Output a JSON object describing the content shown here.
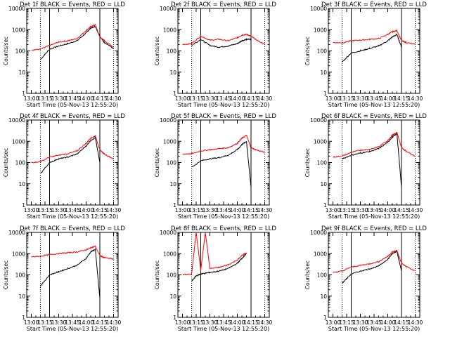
{
  "chart_data": [
    {
      "type": "line",
      "title": "Det 1f BLACK = Events, RED = LLD",
      "xlabel": "Start Time (05-Nov-13 12:55:20)",
      "ylabel": "Counts/sec",
      "x_ticks": [
        "13:00",
        "13:15",
        "13:30",
        "13:45",
        "14:00",
        "14:15",
        "14:30"
      ],
      "y_ticks": [
        "1",
        "10",
        "100",
        "1000",
        "10000"
      ],
      "ylim": [
        1,
        10000
      ],
      "y_scale": "log",
      "x": [
        "13:00",
        "13:10",
        "13:20",
        "13:30",
        "13:40",
        "13:50",
        "14:00",
        "14:05",
        "14:10",
        "14:15",
        "14:20",
        "14:30"
      ],
      "series": [
        {
          "name": "Events",
          "color": "#000000",
          "values": [
            null,
            40,
            120,
            170,
            220,
            300,
            700,
            1200,
            1400,
            500,
            250,
            130
          ]
        },
        {
          "name": "LLD",
          "color": "#ff0000",
          "values": [
            110,
            120,
            180,
            260,
            300,
            380,
            900,
            1400,
            1700,
            450,
            300,
            150
          ]
        }
      ]
    },
    {
      "type": "line",
      "title": "Det 2f BLACK = Events, RED = LLD",
      "xlabel": "Start Time (05-Nov-13 12:55:20)",
      "ylabel": "Counts/sec",
      "x_ticks": [
        "13:00",
        "13:15",
        "13:30",
        "13:45",
        "14:00",
        "14:15",
        "14:30"
      ],
      "y_ticks": [
        "1",
        "10",
        "100",
        "1000",
        "10000"
      ],
      "ylim": [
        1,
        10000
      ],
      "y_scale": "log",
      "x": [
        "13:00",
        "13:10",
        "13:20",
        "13:30",
        "13:40",
        "13:50",
        "14:00",
        "14:05",
        "14:10",
        "14:15",
        "14:20",
        "14:30"
      ],
      "series": [
        {
          "name": "Events",
          "color": "#000000",
          "values": [
            null,
            180,
            350,
            180,
            150,
            170,
            220,
            300,
            350,
            350,
            null,
            null
          ]
        },
        {
          "name": "LLD",
          "color": "#ff0000",
          "values": [
            200,
            220,
            500,
            320,
            350,
            300,
            420,
            550,
            600,
            500,
            350,
            200
          ]
        }
      ]
    },
    {
      "type": "line",
      "title": "Det 3f BLACK = Events, RED = LLD",
      "xlabel": "Start Time (05-Nov-13 12:55:20)",
      "ylabel": "Counts/sec",
      "x_ticks": [
        "13:00",
        "13:15",
        "13:30",
        "13:45",
        "14:00",
        "14:15",
        "14:30"
      ],
      "y_ticks": [
        "1",
        "10",
        "100",
        "1000",
        "10000"
      ],
      "ylim": [
        1,
        10000
      ],
      "y_scale": "log",
      "x": [
        "13:00",
        "13:10",
        "13:20",
        "13:30",
        "13:40",
        "13:50",
        "14:00",
        "14:05",
        "14:10",
        "14:15",
        "14:20",
        "14:30"
      ],
      "series": [
        {
          "name": "Events",
          "color": "#000000",
          "values": [
            null,
            30,
            80,
            100,
            130,
            170,
            300,
            450,
            600,
            150,
            null,
            null
          ]
        },
        {
          "name": "LLD",
          "color": "#ff0000",
          "values": [
            250,
            240,
            300,
            320,
            350,
            380,
            600,
            800,
            900,
            300,
            250,
            200
          ]
        }
      ]
    },
    {
      "type": "line",
      "title": "Det 4f BLACK = Events, RED = LLD",
      "xlabel": "Start Time (05-Nov-13 12:55:20)",
      "ylabel": "Counts/sec",
      "x_ticks": [
        "13:00",
        "13:15",
        "13:30",
        "13:45",
        "14:00",
        "14:15",
        "14:30"
      ],
      "y_ticks": [
        "1",
        "10",
        "100",
        "1000",
        "10000"
      ],
      "ylim": [
        1,
        10000
      ],
      "y_scale": "log",
      "x": [
        "13:00",
        "13:10",
        "13:20",
        "13:30",
        "13:40",
        "13:50",
        "14:00",
        "14:05",
        "14:10",
        "14:15",
        "14:20",
        "14:30"
      ],
      "series": [
        {
          "name": "Events",
          "color": "#000000",
          "values": [
            null,
            30,
            100,
            150,
            180,
            250,
            600,
            1100,
            1500,
            100,
            null,
            null
          ]
        },
        {
          "name": "LLD",
          "color": "#ff0000",
          "values": [
            100,
            110,
            180,
            220,
            260,
            350,
            800,
            1400,
            1800,
            400,
            250,
            150
          ]
        }
      ]
    },
    {
      "type": "line",
      "title": "Det 5f BLACK = Events, RED = LLD",
      "xlabel": "Start Time (05-Nov-13 12:55:20)",
      "ylabel": "Counts/sec",
      "x_ticks": [
        "13:00",
        "13:15",
        "13:30",
        "13:45",
        "14:00",
        "14:15",
        "14:30"
      ],
      "y_ticks": [
        "1",
        "10",
        "100",
        "1000",
        "10000"
      ],
      "ylim": [
        1,
        10000
      ],
      "y_scale": "log",
      "x": [
        "13:00",
        "13:10",
        "13:20",
        "13:30",
        "13:40",
        "13:50",
        "14:00",
        "14:05",
        "14:10",
        "14:15",
        "14:20",
        "14:30"
      ],
      "series": [
        {
          "name": "Events",
          "color": "#000000",
          "values": [
            null,
            60,
            120,
            150,
            170,
            220,
            400,
            700,
            1000,
            7,
            null,
            null
          ]
        },
        {
          "name": "LLD",
          "color": "#ff0000",
          "values": [
            250,
            260,
            350,
            400,
            450,
            500,
            800,
            1400,
            1900,
            500,
            400,
            300
          ]
        }
      ]
    },
    {
      "type": "line",
      "title": "Det 6f BLACK = Events, RED = LLD",
      "xlabel": "Start Time (05-Nov-13 12:55:20)",
      "ylabel": "Counts/sec",
      "x_ticks": [
        "13:00",
        "13:15",
        "13:30",
        "13:45",
        "14:00",
        "14:15",
        "14:30"
      ],
      "y_ticks": [
        "1",
        "10",
        "100",
        "1000",
        "10000"
      ],
      "ylim": [
        1,
        10000
      ],
      "y_scale": "log",
      "x": [
        "13:00",
        "13:10",
        "13:20",
        "13:30",
        "13:40",
        "13:50",
        "14:00",
        "14:05",
        "14:10",
        "14:15",
        "14:20",
        "14:30"
      ],
      "series": [
        {
          "name": "Events",
          "color": "#000000",
          "values": [
            null,
            150,
            220,
            280,
            330,
            450,
            900,
            1600,
            2300,
            7,
            null,
            null
          ]
        },
        {
          "name": "LLD",
          "color": "#ff0000",
          "values": [
            180,
            200,
            300,
            380,
            420,
            550,
            1100,
            2000,
            2600,
            500,
            350,
            200
          ]
        }
      ]
    },
    {
      "type": "line",
      "title": "Det 7f BLACK = Events, RED = LLD",
      "xlabel": "Start Time (05-Nov-13 12:55:20)",
      "ylabel": "Counts/sec",
      "x_ticks": [
        "13:00",
        "13:15",
        "13:30",
        "13:45",
        "14:00",
        "14:15",
        "14:30"
      ],
      "y_ticks": [
        "1",
        "10",
        "100",
        "1000",
        "10000"
      ],
      "ylim": [
        1,
        10000
      ],
      "y_scale": "log",
      "x": [
        "13:00",
        "13:10",
        "13:20",
        "13:30",
        "13:40",
        "13:50",
        "14:00",
        "14:05",
        "14:10",
        "14:15",
        "14:20",
        "14:30"
      ],
      "series": [
        {
          "name": "Events",
          "color": "#000000",
          "values": [
            null,
            30,
            100,
            140,
            200,
            280,
            600,
            1200,
            1600,
            8,
            null,
            null
          ]
        },
        {
          "name": "LLD",
          "color": "#ff0000",
          "values": [
            700,
            750,
            900,
            1000,
            1100,
            1200,
            1500,
            1900,
            2200,
            800,
            650,
            550
          ]
        }
      ]
    },
    {
      "type": "line",
      "title": "Det 8f BLACK = Events, RED = LLD",
      "xlabel": "Start Time (05-Nov-13 12:55:20)",
      "ylabel": "Counts/sec",
      "x_ticks": [
        "13:00",
        "13:15",
        "13:30",
        "13:45",
        "14:00",
        "14:15",
        "14:30"
      ],
      "y_ticks": [
        "1",
        "10",
        "100",
        "1000",
        "10000"
      ],
      "ylim": [
        1,
        10000
      ],
      "y_scale": "log",
      "x": [
        "13:00",
        "13:10",
        "13:15",
        "13:20",
        "13:25",
        "13:30",
        "13:40",
        "13:50",
        "14:00",
        "14:05",
        "14:10",
        "14:15"
      ],
      "series": [
        {
          "name": "Events",
          "color": "#000000",
          "values": [
            null,
            50,
            90,
            110,
            120,
            130,
            150,
            200,
            350,
            600,
            1000,
            null
          ]
        },
        {
          "name": "LLD",
          "color": "#ff0000",
          "values": [
            100,
            110,
            10000,
            160,
            10000,
            200,
            220,
            300,
            500,
            800,
            1100,
            null
          ]
        }
      ]
    },
    {
      "type": "line",
      "title": "Det 9f BLACK = Events, RED = LLD",
      "xlabel": "Start Time (05-Nov-13 12:55:20)",
      "ylabel": "Counts/sec",
      "x_ticks": [
        "13:00",
        "13:15",
        "13:30",
        "13:45",
        "14:00",
        "14:15",
        "14:30"
      ],
      "y_ticks": [
        "1",
        "10",
        "100",
        "1000",
        "10000"
      ],
      "ylim": [
        1,
        10000
      ],
      "y_scale": "log",
      "x": [
        "13:00",
        "13:10",
        "13:20",
        "13:30",
        "13:40",
        "13:50",
        "14:00",
        "14:05",
        "14:10",
        "14:15",
        "14:20",
        "14:30"
      ],
      "series": [
        {
          "name": "Events",
          "color": "#000000",
          "values": [
            null,
            40,
            110,
            150,
            190,
            260,
            550,
            1000,
            1300,
            150,
            null,
            null
          ]
        },
        {
          "name": "LLD",
          "color": "#ff0000",
          "values": [
            130,
            150,
            230,
            280,
            330,
            420,
            750,
            1200,
            1400,
            350,
            250,
            150
          ]
        }
      ]
    }
  ]
}
